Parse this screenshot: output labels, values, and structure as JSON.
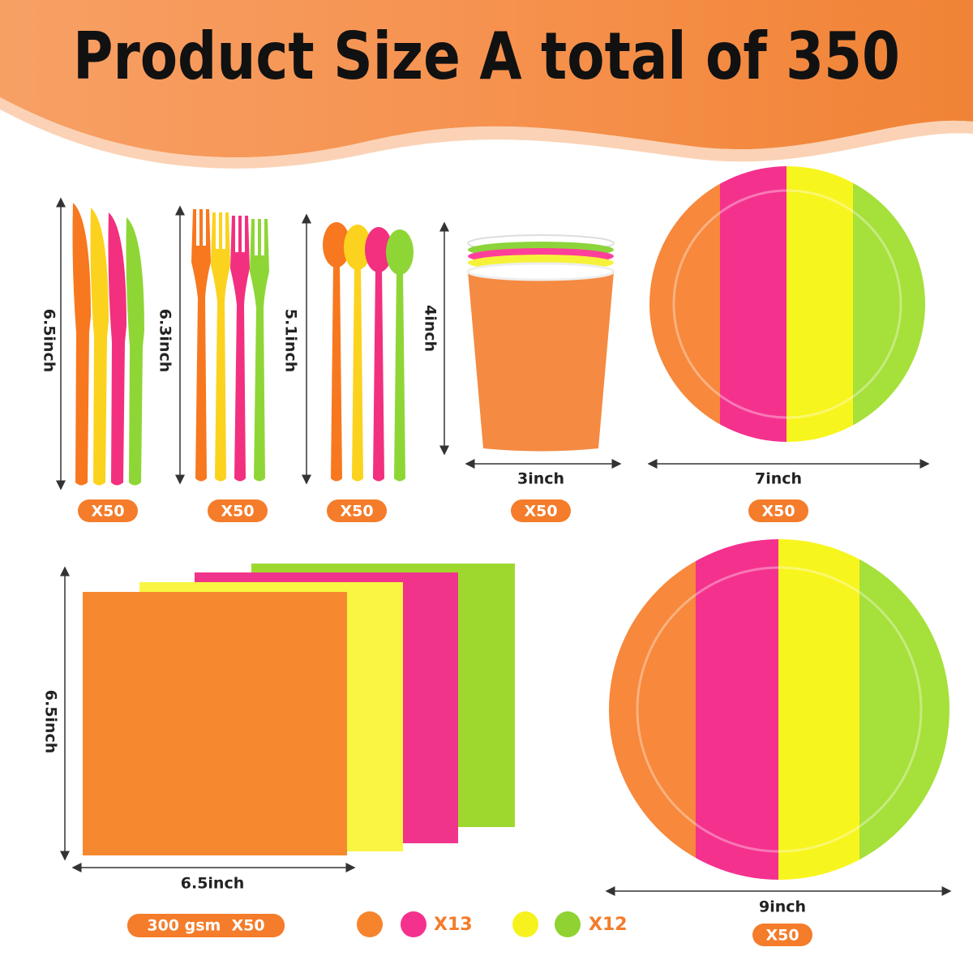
{
  "title": "Product Size A total of 350",
  "knife": {
    "size": "6.5inch",
    "count": "X50"
  },
  "fork": {
    "size": "6.3inch",
    "count": "X50"
  },
  "spoon": {
    "size": "5.1inch",
    "count": "X50"
  },
  "cup": {
    "height": "4inch",
    "width": "3inch",
    "count": "X50"
  },
  "small_plate": {
    "size": "7inch",
    "count": "X50"
  },
  "napkin": {
    "height": "6.5inch",
    "width": "6.5inch",
    "badge": "300 gsm  X50",
    "color_counts": [
      "X13",
      "X12"
    ]
  },
  "large_plate": {
    "size": "9inch",
    "count": "X50"
  }
}
